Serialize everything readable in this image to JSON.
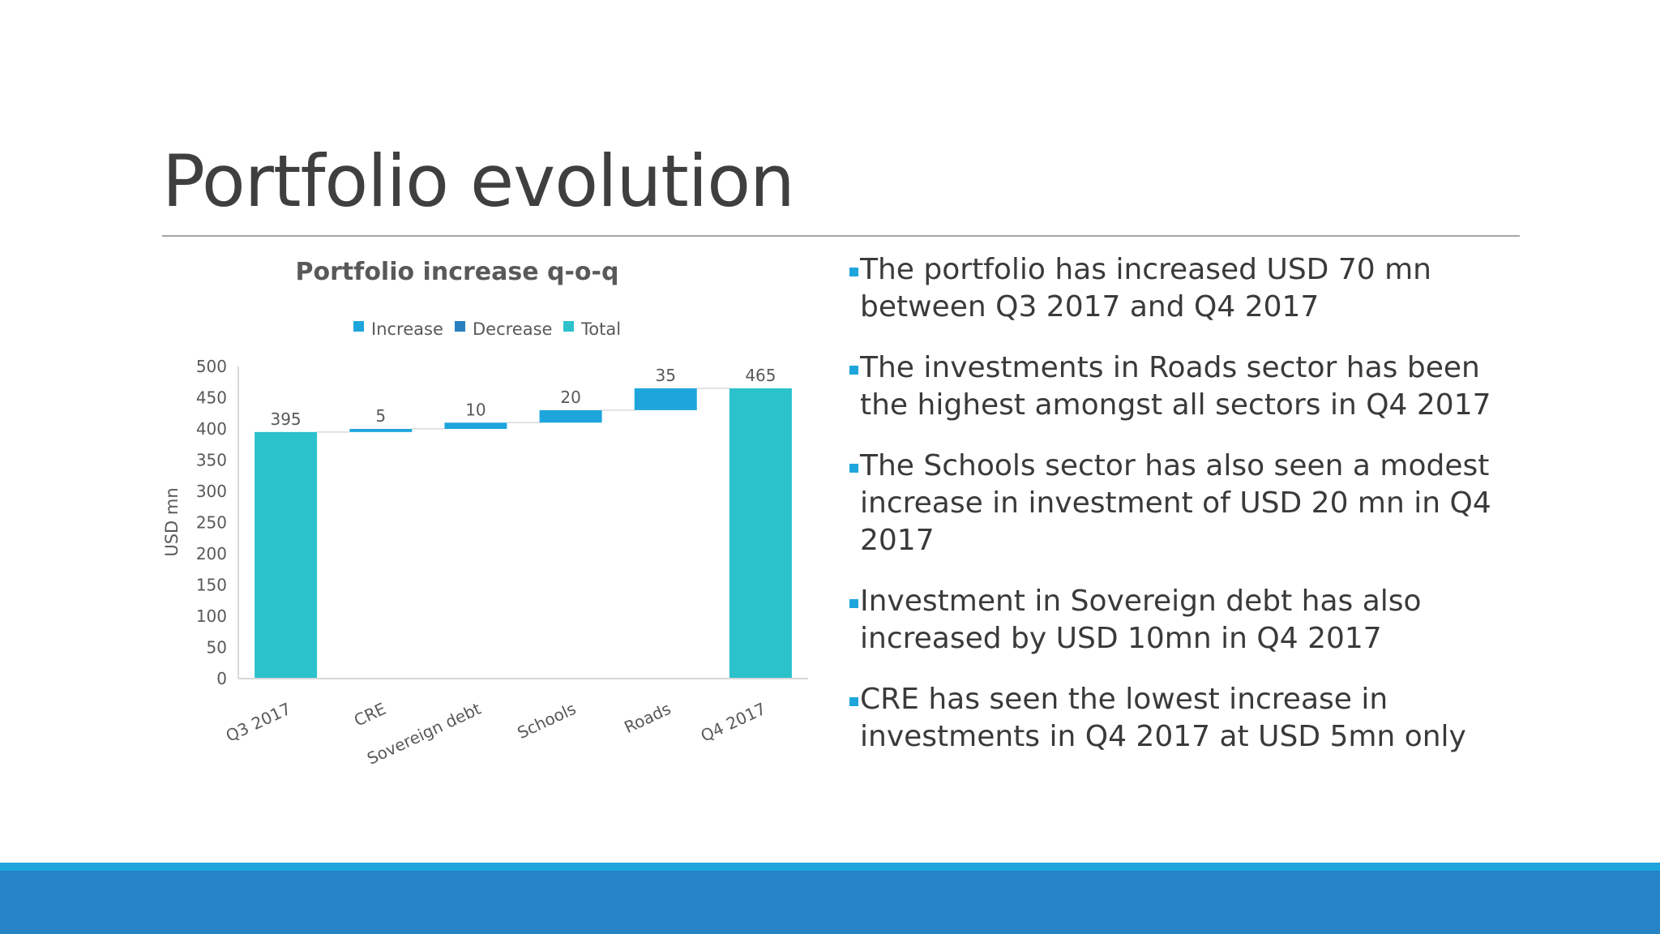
{
  "slide": {
    "title": "Portfolio evolution"
  },
  "chart_data": {
    "type": "bar",
    "subtype": "waterfall",
    "title": "Portfolio increase q-o-q",
    "xlabel": "",
    "ylabel": "USD mn",
    "ylim": [
      0,
      500
    ],
    "yticks": [
      0,
      50,
      100,
      150,
      200,
      250,
      300,
      350,
      400,
      450,
      500
    ],
    "grid": false,
    "legend_position": "top",
    "legend": [
      {
        "name": "Increase",
        "color": "#1ea6dc"
      },
      {
        "name": "Decrease",
        "color": "#2a7fc1"
      },
      {
        "name": "Total",
        "color": "#2bc2cc"
      }
    ],
    "categories": [
      "Q3 2017",
      "CRE",
      "Sovereign debt",
      "Schools",
      "Roads",
      "Q4 2017"
    ],
    "values": [
      395,
      5,
      10,
      20,
      35,
      465
    ],
    "bar_kind": [
      "total",
      "increase",
      "increase",
      "increase",
      "increase",
      "total"
    ],
    "data_labels": [
      "395",
      "5",
      "10",
      "20",
      "35",
      "465"
    ]
  },
  "bullets": [
    {
      "text": "The portfolio has increased USD 70 mn between Q3 2017 and Q4 2017"
    },
    {
      "text": "The investments in Roads sector has been the highest amongst all sectors in Q4 2017"
    },
    {
      "text": "The Schools sector has also seen a modest increase in investment of USD 20 mn in Q4 2017"
    },
    {
      "text": "Investment in Sovereign debt has also increased by USD 10mn in Q4 2017"
    },
    {
      "text": "CRE has seen the lowest increase in investments in Q4 2017 at USD 5mn only"
    }
  ],
  "colors": {
    "increase": "#1ea6dc",
    "decrease": "#2a7fc1",
    "total": "#2bc2cc",
    "footer_light": "#1ea6dc",
    "footer_dark": "#2583c6"
  }
}
